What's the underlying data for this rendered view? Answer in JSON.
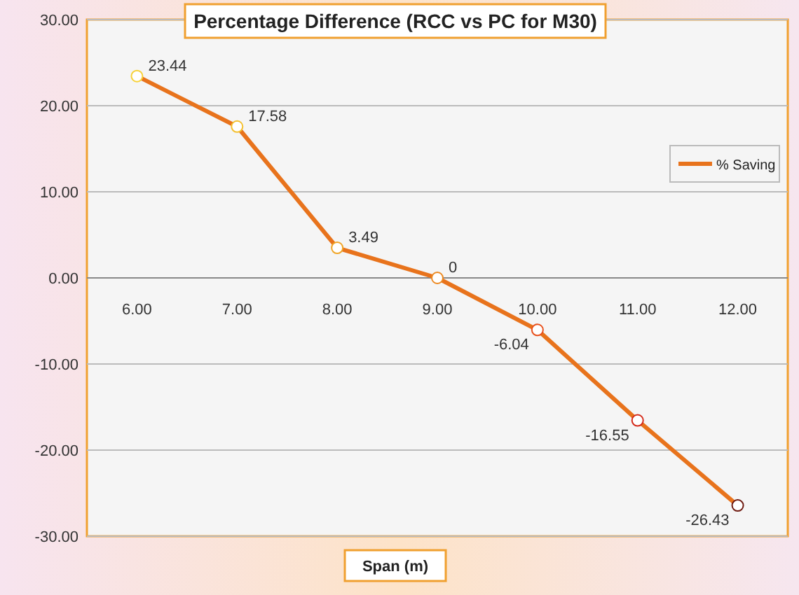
{
  "chart_data": {
    "type": "line",
    "title": "Percentage Difference (RCC vs PC for M30)",
    "xlabel": "Span (m)",
    "categories": [
      "6.00",
      "7.00",
      "8.00",
      "9.00",
      "10.00",
      "11.00",
      "12.00"
    ],
    "series": [
      {
        "name": "% Saving",
        "color": "#e8731c",
        "colors": [
          "#f7d23a",
          "#f4c02e",
          "#f0a526",
          "#ec8a22",
          "#e8501c",
          "#d42a1a",
          "#6e1a10"
        ],
        "values": [
          23.44,
          17.58,
          3.49,
          0,
          -6.04,
          -16.55,
          -26.43
        ]
      }
    ],
    "ylim": [
      -30,
      30
    ],
    "yticks": [
      {
        "value": -30,
        "label": "-30.00"
      },
      {
        "value": -20,
        "label": "-20.00"
      },
      {
        "value": -10,
        "label": "-10.00"
      },
      {
        "value": 0,
        "label": "0.00"
      },
      {
        "value": 10,
        "label": "10.00"
      },
      {
        "value": 20,
        "label": "20.00"
      },
      {
        "value": 30,
        "label": "30.00"
      }
    ],
    "grid": "y",
    "legend": "top right",
    "marker": "circle",
    "line_style": "solid",
    "data_labels": true
  }
}
